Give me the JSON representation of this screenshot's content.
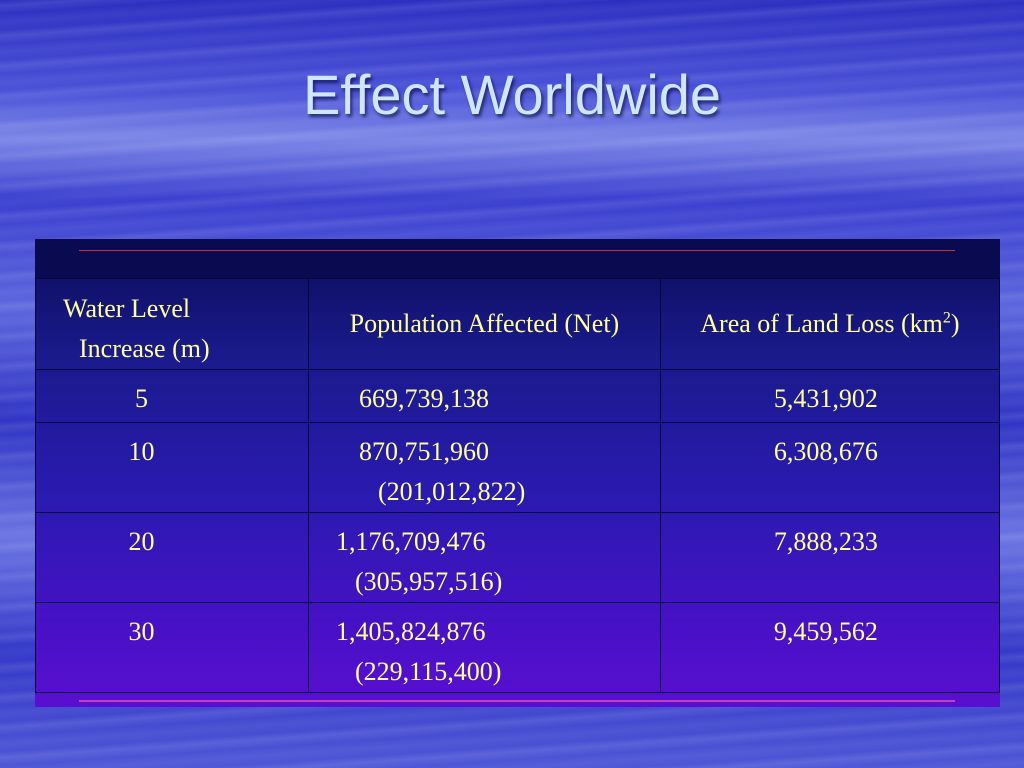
{
  "slide": {
    "title": "Effect Worldwide"
  },
  "table": {
    "headers": {
      "water_level_line1": "Water Level",
      "water_level_line2": "Increase (m)",
      "population": "Population Affected (Net)",
      "area_prefix": "Area of Land Loss (km",
      "area_sup": "2",
      "area_suffix": ")"
    },
    "rows": [
      {
        "level": "5",
        "population": "669,739,138",
        "population_sub": "",
        "area": "5,431,902"
      },
      {
        "level": "10",
        "population": "870,751,960",
        "population_sub": "(201,012,822)",
        "area": "6,308,676"
      },
      {
        "level": "20",
        "population": "1,176,709,476",
        "population_sub": "(305,957,516)",
        "area": "7,888,233"
      },
      {
        "level": "30",
        "population": "1,405,824,876",
        "population_sub": "(229,115,400)",
        "area": "9,459,562"
      }
    ]
  },
  "colors": {
    "title_text": "#cfe6ff",
    "table_text": "#ffff99",
    "accent_line": "#d23030"
  }
}
